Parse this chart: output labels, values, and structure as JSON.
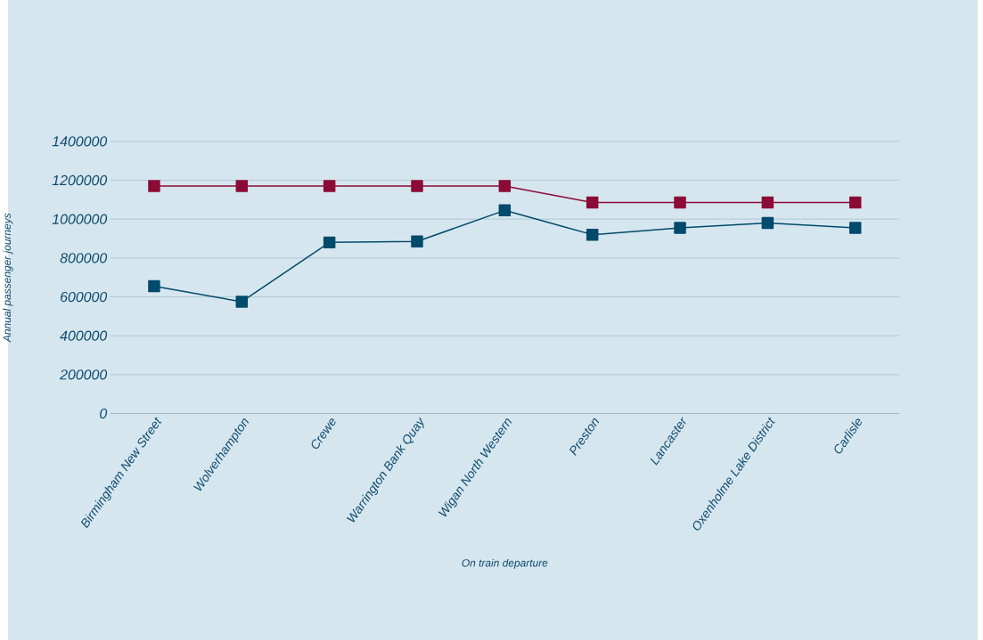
{
  "chart_data": {
    "type": "line",
    "xlabel": "On train departure",
    "ylabel": "Annual passenger journeys",
    "categories": [
      "Birmingham New Street",
      "Wolverhampton",
      "Crewe",
      "Warrington Bank Quay",
      "Wigan North Western",
      "Preston",
      "Lancaster",
      "Oxenholme Lake District",
      "Carlisle"
    ],
    "series": [
      {
        "color": "#8c0b36",
        "values": [
          1170000,
          1170000,
          1170000,
          1170000,
          1170000,
          1085000,
          1085000,
          1085000,
          1085000
        ]
      },
      {
        "color": "#004a6b",
        "values": [
          655000,
          575000,
          880000,
          885000,
          1045000,
          920000,
          955000,
          980000,
          955000
        ]
      }
    ],
    "ylim": [
      0,
      1400000
    ],
    "yticks": [
      0,
      200000,
      400000,
      600000,
      800000,
      1000000,
      1200000,
      1400000
    ],
    "grid": "y",
    "marker": "square",
    "line_style": "solid"
  }
}
